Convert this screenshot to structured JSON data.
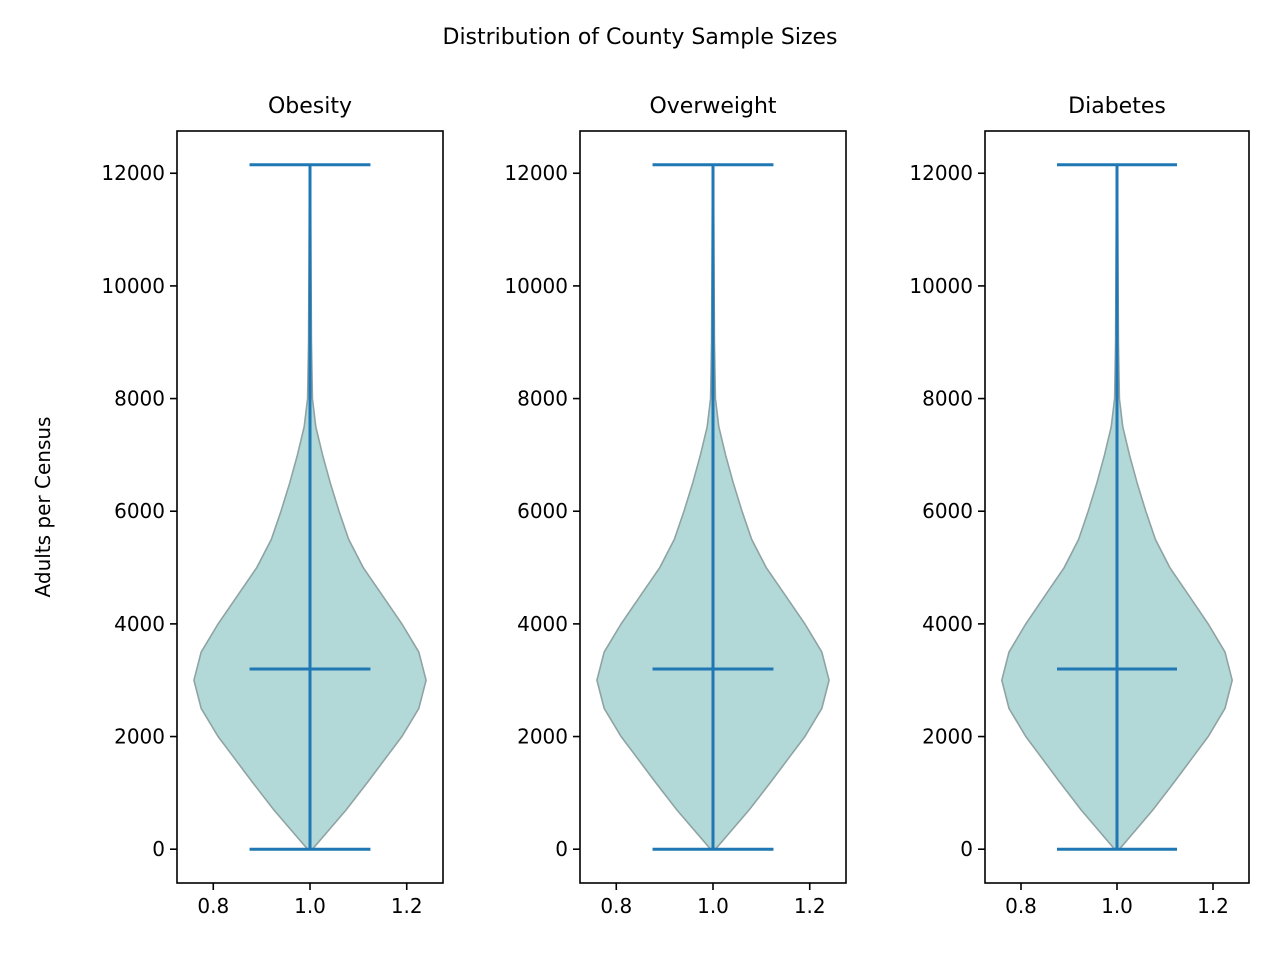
{
  "chart_data": {
    "type": "violin",
    "title": "Distribution of County Sample Sizes",
    "ylabel": "Adults per Census",
    "xlim": [
      0.725,
      1.275
    ],
    "ylim": [
      -600,
      12750
    ],
    "xticks": [
      0.8,
      1.0,
      1.2
    ],
    "xtick_labels": [
      "0.8",
      "1.0",
      "1.2"
    ],
    "yticks": [
      0,
      2000,
      4000,
      6000,
      8000,
      10000,
      12000
    ],
    "ytick_labels": [
      "0",
      "2000",
      "4000",
      "6000",
      "8000",
      "10000",
      "12000"
    ],
    "colors": {
      "fill": "#b2d9d8",
      "outline": "#8fa3a3",
      "lines": "#1f77b4"
    },
    "panels": [
      {
        "title": "Obesity",
        "position": 1.0,
        "min": 0,
        "median": 3200,
        "max": 12150,
        "density_profile": [
          {
            "y": 0,
            "width": 0.005
          },
          {
            "y": 250,
            "width": 0.03
          },
          {
            "y": 700,
            "width": 0.075
          },
          {
            "y": 1200,
            "width": 0.12
          },
          {
            "y": 1600,
            "width": 0.155
          },
          {
            "y": 2000,
            "width": 0.19
          },
          {
            "y": 2500,
            "width": 0.225
          },
          {
            "y": 3000,
            "width": 0.24
          },
          {
            "y": 3500,
            "width": 0.225
          },
          {
            "y": 4000,
            "width": 0.19
          },
          {
            "y": 4500,
            "width": 0.15
          },
          {
            "y": 5000,
            "width": 0.11
          },
          {
            "y": 5500,
            "width": 0.08
          },
          {
            "y": 6000,
            "width": 0.06
          },
          {
            "y": 6500,
            "width": 0.042
          },
          {
            "y": 7000,
            "width": 0.026
          },
          {
            "y": 7500,
            "width": 0.012
          },
          {
            "y": 8000,
            "width": 0.005
          },
          {
            "y": 9000,
            "width": 0.003
          },
          {
            "y": 10500,
            "width": 0.002
          },
          {
            "y": 12150,
            "width": 0.001
          }
        ]
      },
      {
        "title": "Overweight",
        "position": 1.0,
        "min": 0,
        "median": 3200,
        "max": 12150,
        "density_profile": [
          {
            "y": 0,
            "width": 0.005
          },
          {
            "y": 250,
            "width": 0.03
          },
          {
            "y": 700,
            "width": 0.075
          },
          {
            "y": 1200,
            "width": 0.12
          },
          {
            "y": 1600,
            "width": 0.155
          },
          {
            "y": 2000,
            "width": 0.19
          },
          {
            "y": 2500,
            "width": 0.225
          },
          {
            "y": 3000,
            "width": 0.24
          },
          {
            "y": 3500,
            "width": 0.225
          },
          {
            "y": 4000,
            "width": 0.19
          },
          {
            "y": 4500,
            "width": 0.15
          },
          {
            "y": 5000,
            "width": 0.11
          },
          {
            "y": 5500,
            "width": 0.08
          },
          {
            "y": 6000,
            "width": 0.06
          },
          {
            "y": 6500,
            "width": 0.042
          },
          {
            "y": 7000,
            "width": 0.026
          },
          {
            "y": 7500,
            "width": 0.012
          },
          {
            "y": 8000,
            "width": 0.005
          },
          {
            "y": 9000,
            "width": 0.003
          },
          {
            "y": 10500,
            "width": 0.002
          },
          {
            "y": 12150,
            "width": 0.001
          }
        ]
      },
      {
        "title": "Diabetes",
        "position": 1.0,
        "min": 0,
        "median": 3200,
        "max": 12150,
        "density_profile": [
          {
            "y": 0,
            "width": 0.005
          },
          {
            "y": 250,
            "width": 0.03
          },
          {
            "y": 700,
            "width": 0.075
          },
          {
            "y": 1200,
            "width": 0.12
          },
          {
            "y": 1600,
            "width": 0.155
          },
          {
            "y": 2000,
            "width": 0.19
          },
          {
            "y": 2500,
            "width": 0.225
          },
          {
            "y": 3000,
            "width": 0.24
          },
          {
            "y": 3500,
            "width": 0.225
          },
          {
            "y": 4000,
            "width": 0.19
          },
          {
            "y": 4500,
            "width": 0.15
          },
          {
            "y": 5000,
            "width": 0.11
          },
          {
            "y": 5500,
            "width": 0.08
          },
          {
            "y": 6000,
            "width": 0.06
          },
          {
            "y": 6500,
            "width": 0.042
          },
          {
            "y": 7000,
            "width": 0.026
          },
          {
            "y": 7500,
            "width": 0.012
          },
          {
            "y": 8000,
            "width": 0.005
          },
          {
            "y": 9000,
            "width": 0.003
          },
          {
            "y": 10500,
            "width": 0.002
          },
          {
            "y": 12150,
            "width": 0.001
          }
        ]
      }
    ]
  }
}
